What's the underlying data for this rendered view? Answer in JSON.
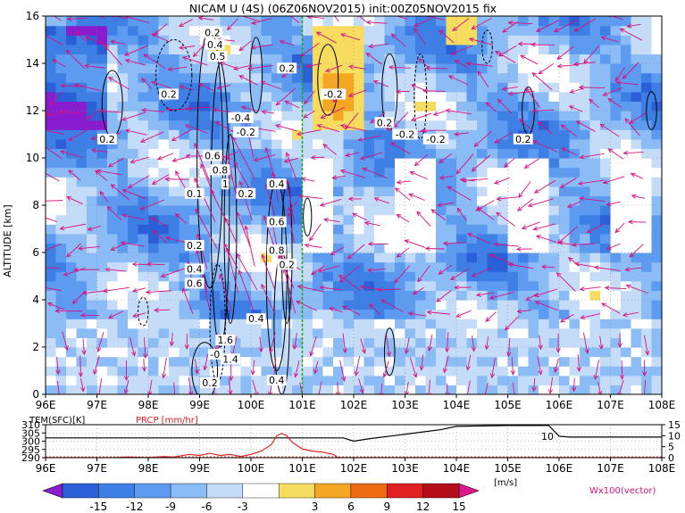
{
  "title": "NICAM U (4S) (06Z06NOV2015) init:00Z05NOV2015 fix",
  "chart_data": [
    {
      "type": "heatmap",
      "title": "NICAM U (4S) (06Z06NOV2015) init:00Z05NOV2015 fix",
      "ylabel": "ALTITUDE [km]",
      "xlim": [
        96,
        108
      ],
      "ylim": [
        0,
        16
      ],
      "x_ticks": [
        "96E",
        "97E",
        "98E",
        "99E",
        "100E",
        "101E",
        "102E",
        "103E",
        "104E",
        "105E",
        "106E",
        "107E",
        "108E"
      ],
      "y_ticks": [
        "0",
        "2",
        "4",
        "6",
        "8",
        "10",
        "12",
        "14",
        "16"
      ],
      "grid": true,
      "marker_line_x": 101,
      "contour_labels": [
        {
          "x": 98.4,
          "y": 12.7,
          "text": "0.2"
        },
        {
          "x": 99.25,
          "y": 15.3,
          "text": "0.2"
        },
        {
          "x": 99.3,
          "y": 14.8,
          "text": "0.4"
        },
        {
          "x": 99.35,
          "y": 14.3,
          "text": "0.5"
        },
        {
          "x": 99.8,
          "y": 11.7,
          "text": "-0.4"
        },
        {
          "x": 99.9,
          "y": 11.1,
          "text": "-0.2"
        },
        {
          "x": 97.2,
          "y": 10.8,
          "text": "0.2"
        },
        {
          "x": 99.25,
          "y": 10.1,
          "text": "0.6"
        },
        {
          "x": 99.4,
          "y": 9.5,
          "text": "0.8"
        },
        {
          "x": 99.5,
          "y": 8.9,
          "text": "1"
        },
        {
          "x": 98.9,
          "y": 8.5,
          "text": "0.1"
        },
        {
          "x": 99.9,
          "y": 8.5,
          "text": "0.2"
        },
        {
          "x": 100.5,
          "y": 8.9,
          "text": "0.4"
        },
        {
          "x": 100.5,
          "y": 7.3,
          "text": "0.6"
        },
        {
          "x": 100.5,
          "y": 6.1,
          "text": "0.8"
        },
        {
          "x": 100.7,
          "y": 5.5,
          "text": "0.2"
        },
        {
          "x": 98.9,
          "y": 6.3,
          "text": "0.2"
        },
        {
          "x": 98.9,
          "y": 5.3,
          "text": "0.4"
        },
        {
          "x": 98.9,
          "y": 4.7,
          "text": "0.6"
        },
        {
          "x": 100.1,
          "y": 3.2,
          "text": "0.4"
        },
        {
          "x": 99.5,
          "y": 2.3,
          "text": "1.6"
        },
        {
          "x": 99.3,
          "y": 1.7,
          "text": "-0"
        },
        {
          "x": 99.6,
          "y": 1.5,
          "text": "1.4"
        },
        {
          "x": 99.2,
          "y": 0.5,
          "text": "0.2"
        },
        {
          "x": 100.5,
          "y": 0.6,
          "text": "0.4"
        },
        {
          "x": 101.6,
          "y": 12.7,
          "text": "-0.2"
        },
        {
          "x": 102.6,
          "y": 11.5,
          "text": "0.2"
        },
        {
          "x": 103.0,
          "y": 11.0,
          "text": "-0.2"
        },
        {
          "x": 103.6,
          "y": 10.8,
          "text": "-0.2"
        },
        {
          "x": 100.7,
          "y": 13.8,
          "text": "0.2"
        },
        {
          "x": 105.3,
          "y": 10.8,
          "text": "0.2"
        }
      ],
      "colorbar": {
        "levels": [
          "-15",
          "-12",
          "-9",
          "-6",
          "-3",
          "3",
          "6",
          "9",
          "12",
          "15"
        ],
        "unit": "[m/s]",
        "colors": [
          "#8a1ccf",
          "#2a5fd8",
          "#3e7fe6",
          "#5c9bf0",
          "#8cbcf5",
          "#c5dcf8",
          "#ffffff",
          "#f8dc60",
          "#f5a623",
          "#ef6a10",
          "#e02020",
          "#b50d1b",
          "#e0178c"
        ]
      },
      "vector_label": "Wx100(vector)",
      "vector_color": "#d6107f"
    },
    {
      "type": "line",
      "title": "",
      "xlim": [
        96,
        108
      ],
      "x_ticks": [
        "96E",
        "97E",
        "98E",
        "99E",
        "100E",
        "101E",
        "102E",
        "103E",
        "104E",
        "105E",
        "106E",
        "107E",
        "108E"
      ],
      "left_axis": {
        "label": "TEM(SFC)[K]",
        "ticks": [
          "290",
          "295",
          "300",
          "305",
          "310"
        ],
        "range": [
          290,
          310
        ]
      },
      "right_axis": {
        "ticks": [
          "0",
          "5",
          "10",
          "15"
        ],
        "range": [
          0,
          15
        ]
      },
      "annotation": "10",
      "series": [
        {
          "name": "TEM(SFC)[K]",
          "color": "#000000",
          "x": [
            96,
            97,
            98,
            99,
            100,
            101,
            101.8,
            102.0,
            102.3,
            102.7,
            103.2,
            103.7,
            104.0,
            105,
            105.8,
            106.0,
            106.2,
            107,
            108
          ],
          "values": [
            302,
            302,
            302,
            302,
            302,
            302,
            302,
            300,
            301.5,
            303,
            305,
            307,
            309,
            309.5,
            309.5,
            303,
            302.5,
            302.5,
            302.5
          ]
        },
        {
          "name": "PRCP [mm/hr]",
          "color": "#e02020",
          "x": [
            96,
            97.3,
            97.6,
            98,
            98.3,
            98.5,
            98.8,
            99.0,
            99.2,
            99.4,
            99.6,
            99.8,
            100.0,
            100.2,
            100.4,
            100.5,
            100.6,
            100.7,
            100.8,
            101.0,
            101.2,
            101.4,
            101.6,
            101.7,
            102,
            108
          ],
          "values": [
            0,
            0,
            0.3,
            0,
            0.5,
            0.3,
            1.5,
            1,
            2,
            1,
            1.5,
            0.5,
            1.5,
            3,
            6,
            10,
            11,
            10,
            7,
            4,
            3,
            2.5,
            1.5,
            0,
            0,
            0
          ]
        }
      ]
    }
  ]
}
